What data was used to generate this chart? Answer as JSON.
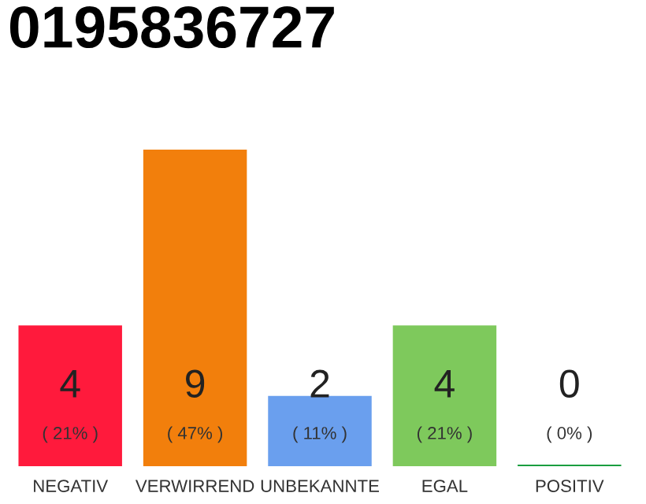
{
  "chart_data": {
    "type": "bar",
    "title": "0195836727",
    "categories": [
      "NEGATIV",
      "VERWIRREND",
      "UNBEKANNTE",
      "EGAL",
      "POSITIV"
    ],
    "values": [
      4,
      9,
      2,
      4,
      0
    ],
    "colors": [
      "#ff1a3c",
      "#f27f0c",
      "#6a9fee",
      "#7ec95c",
      "#1a9e3f"
    ],
    "value_labels": [
      "4\n( 21% )",
      "9\n( 47% )",
      "2\n( 11% )",
      "4\n( 21% )",
      "0\n( 0% )"
    ],
    "grid": false,
    "legend": false
  }
}
